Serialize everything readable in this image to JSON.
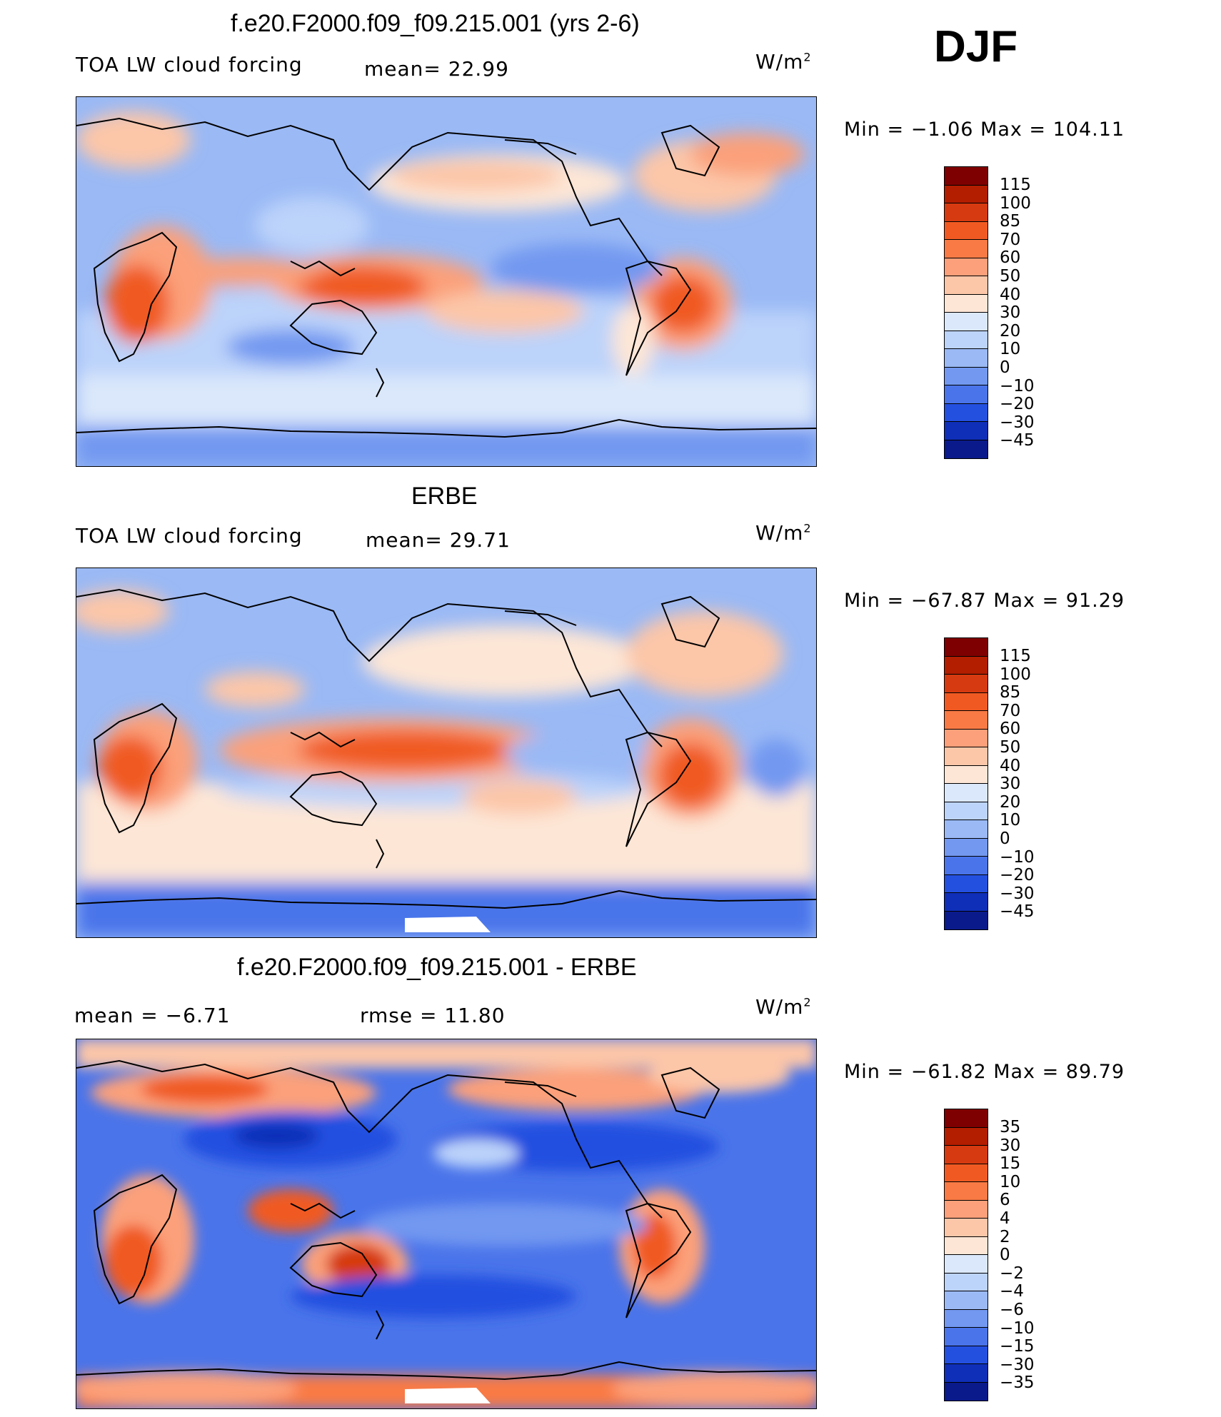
{
  "season": "DJF",
  "panels": [
    {
      "id": "model",
      "title": "f.e20.F2000.f09_f09.215.001 (yrs 2-6)",
      "left_label": "TOA LW cloud forcing",
      "center_label": "mean=   22.99",
      "units": "W/m",
      "units_sup": "2",
      "minmax": "Min  =   −1.06  Max  =  104.11",
      "levels": [
        "115",
        "100",
        "85",
        "70",
        "60",
        "50",
        "40",
        "30",
        "20",
        "10",
        "0",
        "−10",
        "−20",
        "−30",
        "−45"
      ]
    },
    {
      "id": "obs",
      "title": "ERBE",
      "left_label": "TOA LW cloud forcing",
      "center_label": "mean=   29.71",
      "units": "W/m",
      "units_sup": "2",
      "minmax": "Min  =  −67.87  Max  =   91.29",
      "levels": [
        "115",
        "100",
        "85",
        "70",
        "60",
        "50",
        "40",
        "30",
        "20",
        "10",
        "0",
        "−10",
        "−20",
        "−30",
        "−45"
      ]
    },
    {
      "id": "diff",
      "title": "f.e20.F2000.f09_f09.215.001 - ERBE",
      "left_label": "mean  =    −6.71",
      "center_label": "rmse  =    11.80",
      "units": "W/m",
      "units_sup": "2",
      "minmax": "Min  =  −61.82  Max  =   89.79",
      "levels": [
        "35",
        "30",
        "15",
        "10",
        "6",
        "4",
        "2",
        "0",
        "−2",
        "−4",
        "−6",
        "−10",
        "−15",
        "−30",
        "−35"
      ]
    }
  ],
  "colorbar_colors": [
    "#7f0000",
    "#b31d00",
    "#d63a10",
    "#f05a22",
    "#f97a45",
    "#fba07a",
    "#fcc6a8",
    "#fde6d6",
    "#dbe8fb",
    "#bcd3fa",
    "#9ab9f5",
    "#7298f0",
    "#4a74ea",
    "#2450e0",
    "#0f2fb8",
    "#0a1a8a"
  ]
}
